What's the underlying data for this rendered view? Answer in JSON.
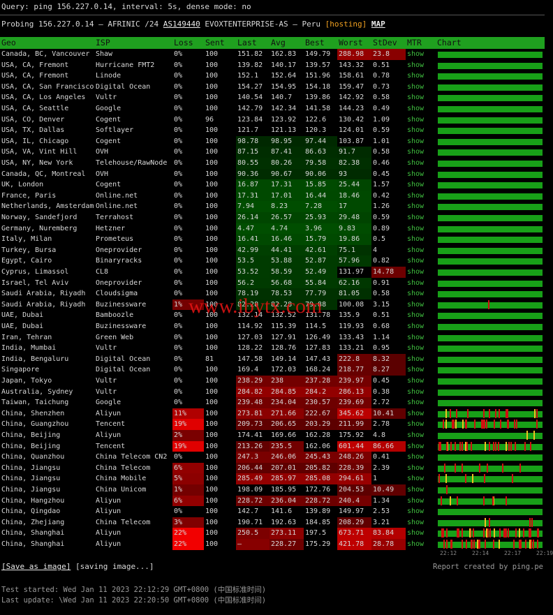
{
  "header": {
    "query": "Query: ping 156.227.0.14, interval: 5s, dense mode: no",
    "probe": "Probing 156.227.0.14 — AFRINIC /24",
    "asn": "AS149440",
    "org": "EVOXTENTERPRISE-AS — Peru",
    "tag": "[hosting]",
    "map": "MAP"
  },
  "table": {
    "columns": [
      "Geo",
      "ISP",
      "Loss",
      "Sent",
      "Last",
      "Avg",
      "Best",
      "Worst",
      "StDev",
      "MTR",
      "Chart"
    ],
    "link_text": "show",
    "rows": [
      [
        "Canada, BC, Vancouver",
        "Shaw",
        "0%",
        "100",
        "151.82",
        "162.83",
        "149.79",
        "288.98",
        "23.8"
      ],
      [
        "USA, CA, Fremont",
        "Hurricane FMT2",
        "0%",
        "100",
        "139.82",
        "140.17",
        "139.57",
        "143.32",
        "0.51"
      ],
      [
        "USA, CA, Fremont",
        "Linode",
        "0%",
        "100",
        "152.1",
        "152.64",
        "151.96",
        "158.61",
        "0.78"
      ],
      [
        "USA, CA, San Francisco",
        "Digital Ocean",
        "0%",
        "100",
        "154.27",
        "154.95",
        "154.18",
        "159.47",
        "0.73"
      ],
      [
        "USA, CA, Los Angeles",
        "Vultr",
        "0%",
        "100",
        "140.54",
        "140.7",
        "139.86",
        "142.92",
        "0.58"
      ],
      [
        "USA, CA, Seattle",
        "Google",
        "0%",
        "100",
        "142.79",
        "142.34",
        "141.58",
        "144.23",
        "0.49"
      ],
      [
        "USA, CO, Denver",
        "Cogent",
        "0%",
        "96",
        "123.84",
        "123.92",
        "122.6",
        "130.42",
        "1.09"
      ],
      [
        "USA, TX, Dallas",
        "Softlayer",
        "0%",
        "100",
        "121.7",
        "121.13",
        "120.3",
        "124.01",
        "0.59"
      ],
      [
        "USA, IL, Chicago",
        "Cogent",
        "0%",
        "100",
        "98.78",
        "98.95",
        "97.44",
        "103.87",
        "1.01"
      ],
      [
        "USA, VA, Vint Hill",
        "OVH",
        "0%",
        "100",
        "87.15",
        "87.41",
        "86.63",
        "91.7",
        "0.58"
      ],
      [
        "USA, NY, New York",
        "Telehouse/RawNode",
        "0%",
        "100",
        "80.55",
        "80.26",
        "79.58",
        "82.38",
        "0.46"
      ],
      [
        "Canada, QC, Montreal",
        "OVH",
        "0%",
        "100",
        "90.36",
        "90.67",
        "90.06",
        "93",
        "0.45"
      ],
      [
        "UK, London",
        "Cogent",
        "0%",
        "100",
        "16.87",
        "17.31",
        "15.85",
        "25.44",
        "1.57"
      ],
      [
        "France, Paris",
        "Online.net",
        "0%",
        "100",
        "17.31",
        "17.01",
        "16.44",
        "18.46",
        "0.42"
      ],
      [
        "Netherlands, Amsterdam",
        "Online.net",
        "0%",
        "100",
        "7.94",
        "8.23",
        "7.28",
        "17",
        "1.26"
      ],
      [
        "Norway, Sandefjord",
        "Terrahost",
        "0%",
        "100",
        "26.14",
        "26.57",
        "25.93",
        "29.48",
        "0.59"
      ],
      [
        "Germany, Nuremberg",
        "Hetzner",
        "0%",
        "100",
        "4.47",
        "4.74",
        "3.96",
        "9.83",
        "0.89"
      ],
      [
        "Italy, Milan",
        "Prometeus",
        "0%",
        "100",
        "16.41",
        "16.46",
        "15.79",
        "19.86",
        "0.5"
      ],
      [
        "Turkey, Bursa",
        "Oneprovider",
        "0%",
        "100",
        "42.99",
        "44.41",
        "42.61",
        "75.1",
        "4"
      ],
      [
        "Egypt, Cairo",
        "Binaryracks",
        "0%",
        "100",
        "53.5",
        "53.88",
        "52.87",
        "57.96",
        "0.82"
      ],
      [
        "Cyprus, Limassol",
        "CL8",
        "0%",
        "100",
        "53.52",
        "58.59",
        "52.49",
        "131.97",
        "14.78"
      ],
      [
        "Israel, Tel Aviv",
        "Oneprovider",
        "0%",
        "100",
        "56.2",
        "56.68",
        "55.84",
        "62.16",
        "0.91"
      ],
      [
        "Saudi Arabia, Riyadh",
        "Cloudsigma",
        "0%",
        "100",
        "78.19",
        "78.53",
        "77.79",
        "81.05",
        "0.58"
      ],
      [
        "Saudi Arabia, Riyadh",
        "Buzinessware",
        "1%",
        "100",
        "82.28",
        "82.28",
        "79.88",
        "100.08",
        "3.15"
      ],
      [
        "UAE, Dubai",
        "Bamboozle",
        "0%",
        "100",
        "132.14",
        "132.52",
        "131.78",
        "135.9",
        "0.51"
      ],
      [
        "UAE, Dubai",
        "Buzinessware",
        "0%",
        "100",
        "114.92",
        "115.39",
        "114.5",
        "119.93",
        "0.68"
      ],
      [
        "Iran, Tehran",
        "Green Web",
        "0%",
        "100",
        "127.03",
        "127.91",
        "126.49",
        "133.43",
        "1.14"
      ],
      [
        "India, Mumbai",
        "Vultr",
        "0%",
        "100",
        "128.22",
        "128.76",
        "127.83",
        "133.21",
        "0.95"
      ],
      [
        "India, Bengaluru",
        "Digital Ocean",
        "0%",
        "81",
        "147.58",
        "149.14",
        "147.43",
        "222.8",
        "8.32"
      ],
      [
        "Singapore",
        "Digital Ocean",
        "0%",
        "100",
        "169.4",
        "172.03",
        "168.24",
        "218.77",
        "8.27"
      ],
      [
        "Japan, Tokyo",
        "Vultr",
        "0%",
        "100",
        "238.29",
        "238",
        "237.28",
        "239.97",
        "0.45"
      ],
      [
        "Australia, Sydney",
        "Vultr",
        "0%",
        "100",
        "284.82",
        "284.85",
        "284.2",
        "286.13",
        "0.38"
      ],
      [
        "Taiwan, Taichung",
        "Google",
        "0%",
        "100",
        "239.48",
        "234.04",
        "230.57",
        "239.69",
        "2.72"
      ],
      [
        "China, Shenzhen",
        "Aliyun",
        "11%",
        "100",
        "273.81",
        "271.66",
        "222.67",
        "345.62",
        "10.41"
      ],
      [
        "China, Guangzhou",
        "Tencent",
        "19%",
        "100",
        "209.73",
        "206.65",
        "203.29",
        "211.99",
        "2.78"
      ],
      [
        "China, Beijing",
        "Aliyun",
        "2%",
        "100",
        "174.41",
        "169.66",
        "162.28",
        "175.92",
        "4.8"
      ],
      [
        "China, Beijing",
        "Tencent",
        "19%",
        "100",
        "213.26",
        "235.5",
        "162.06",
        "601.44",
        "86.66"
      ],
      [
        "China, Quanzhou",
        "China Telecom CN2",
        "0%",
        "100",
        "247.3",
        "246.06",
        "245.43",
        "248.26",
        "0.41"
      ],
      [
        "China, Jiangsu",
        "China Telecom",
        "6%",
        "100",
        "206.44",
        "207.01",
        "205.82",
        "228.39",
        "2.39"
      ],
      [
        "China, Jiangsu",
        "China Mobile",
        "5%",
        "100",
        "285.49",
        "285.97",
        "285.08",
        "294.61",
        "1"
      ],
      [
        "China, Jiangsu",
        "China Unicom",
        "1%",
        "100",
        "198.09",
        "185.95",
        "172.76",
        "204.53",
        "10.49"
      ],
      [
        "China, Hangzhou",
        "Aliyun",
        "6%",
        "100",
        "228.72",
        "236.04",
        "228.72",
        "240.4",
        "1.34"
      ],
      [
        "China, Qingdao",
        "Aliyun",
        "0%",
        "100",
        "142.7",
        "141.6",
        "139.89",
        "149.97",
        "2.53"
      ],
      [
        "China, Zhejiang",
        "China Telecom",
        "3%",
        "100",
        "190.71",
        "192.63",
        "184.85",
        "208.29",
        "3.21"
      ],
      [
        "China, Shanghai",
        "Aliyun",
        "22%",
        "100",
        "250.5",
        "273.11",
        "197.5",
        "673.71",
        "83.84"
      ],
      [
        "China, Shanghai",
        "Aliyun",
        "22%",
        "100",
        "–",
        "228.27",
        "175.29",
        "421.78",
        "28.78"
      ]
    ],
    "chart_times": [
      "22:12",
      "22:14",
      "22:17",
      "22:19"
    ]
  },
  "watermark": "www.ibytx.com",
  "footer": {
    "save": "[Save as image]",
    "saving": "[saving image...]",
    "credit": "Report created by ping.pe",
    "started": "Test started: Wed Jan 11 2023 22:12:29 GMT+0800 (中国标准时间)",
    "updated": "Last update: \\Wed Jan 11 2023 22:20:50 GMT+0800 (中国标准时间)"
  }
}
